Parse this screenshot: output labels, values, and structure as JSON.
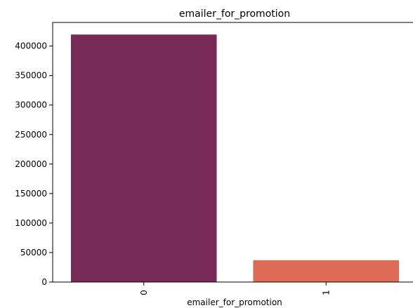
{
  "chart_data": {
    "type": "bar",
    "title": "emailer_for_promotion",
    "xlabel": "emailer_for_promotion",
    "ylabel": "",
    "categories": [
      "0",
      "1"
    ],
    "values": [
      419500,
      37000
    ],
    "colors": [
      "#782a57",
      "#de6b56"
    ],
    "ylim": [
      0,
      440000
    ],
    "yticks": [
      0,
      50000,
      100000,
      150000,
      200000,
      250000,
      300000,
      350000,
      400000
    ],
    "ytick_labels": [
      "0",
      "50000",
      "100000",
      "150000",
      "200000",
      "250000",
      "300000",
      "350000",
      "400000"
    ],
    "grid": false,
    "legend": "none"
  }
}
